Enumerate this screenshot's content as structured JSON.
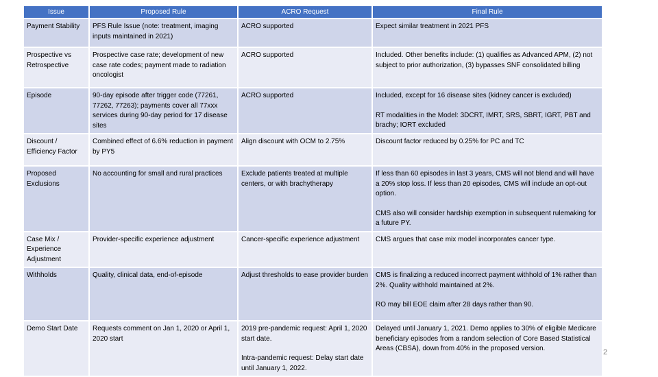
{
  "table": {
    "headers": [
      "Issue",
      "Proposed Rule",
      "ACRO Request",
      "Final Rule"
    ],
    "rows": [
      {
        "issue": [
          "Payment Stability"
        ],
        "proposed": [
          "PFS Rule Issue (note: treatment, imaging inputs maintained in 2021)"
        ],
        "acro": [
          "ACRO supported"
        ],
        "final": [
          "Expect similar treatment in 2021 PFS"
        ]
      },
      {
        "issue": [
          "Prospective vs Retrospective"
        ],
        "proposed": [
          "Prospective case rate; development of new case rate codes; payment made to radiation oncologist"
        ],
        "acro": [
          "ACRO supported"
        ],
        "final": [
          "Included. Other benefits include: (1) qualifies as Advanced APM, (2) not subject to prior authorization, (3) bypasses SNF consolidated billing"
        ]
      },
      {
        "issue": [
          "Episode"
        ],
        "proposed": [
          "90-day episode after trigger code (77261, 77262, 77263); payments cover all 77xxx services during 90-day period for 17 disease sites"
        ],
        "acro": [
          "ACRO supported"
        ],
        "final": [
          "Included, except for 16 disease sites (kidney cancer is excluded)",
          "RT modalities in the Model: 3DCRT, IMRT, SRS, SBRT, IGRT, PBT and brachy; IORT excluded"
        ]
      },
      {
        "issue": [
          "Discount / Efficiency Factor"
        ],
        "proposed": [
          "Combined effect of 6.6% reduction in payment by PY5"
        ],
        "acro": [
          "Align discount with OCM to 2.75%"
        ],
        "final": [
          "Discount factor reduced by 0.25% for PC and TC"
        ]
      },
      {
        "issue": [
          "Proposed Exclusions"
        ],
        "proposed": [
          "No accounting for small and rural practices"
        ],
        "acro": [
          "Exclude patients treated at multiple centers, or with brachytherapy"
        ],
        "final": [
          "If less than 60 episodes in last 3 years, CMS will not blend and will have a 20% stop loss. If less than 20 episodes, CMS will include an opt-out option.",
          "CMS also will consider hardship exemption in subsequent rulemaking for a future PY."
        ]
      },
      {
        "issue": [
          "Case Mix / Experience Adjustment"
        ],
        "proposed": [
          "Provider-specific experience adjustment"
        ],
        "acro": [
          "Cancer-specific experience adjustment"
        ],
        "final": [
          "CMS argues that case mix model incorporates cancer type."
        ]
      },
      {
        "issue": [
          "Withholds"
        ],
        "proposed": [
          "Quality, clinical data, end-of-episode"
        ],
        "acro": [
          "Adjust thresholds to ease provider burden"
        ],
        "final": [
          "CMS is finalizing a reduced incorrect payment withhold of 1% rather than 2%. Quality withhold maintained at 2%.",
          "RO may bill EOE claim after 28 days rather than 90."
        ]
      },
      {
        "issue": [
          "Demo Start Date"
        ],
        "proposed": [
          "Requests comment on Jan 1, 2020 or April 1, 2020 start"
        ],
        "acro": [
          "2019 pre-pandemic request: April 1, 2020 start date.",
          "Intra-pandemic request: Delay start date until January 1, 2022."
        ],
        "final": [
          "Delayed until January 1, 2021. Demo applies to 30% of eligible Medicare beneficiary episodes from a random selection of Core Based Statistical Areas (CBSA), down from 40% in the proposed version."
        ]
      }
    ]
  },
  "page_number": "2"
}
